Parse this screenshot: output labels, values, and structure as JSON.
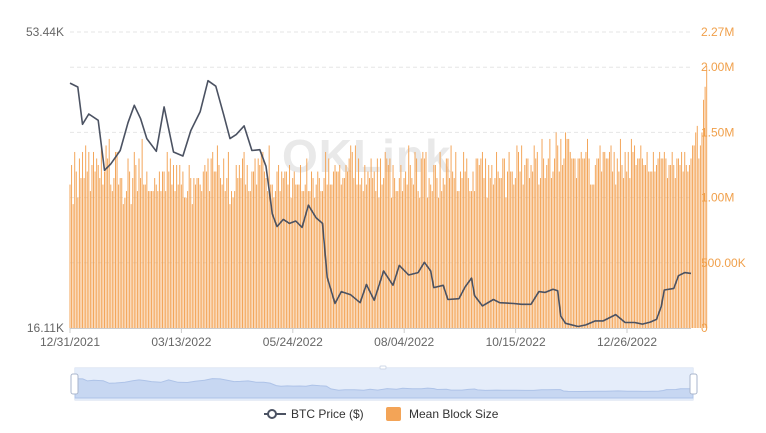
{
  "chart_data": {
    "type": "bar+line",
    "watermark": "OKLink",
    "colors": {
      "bar": "#f3a457",
      "line": "#4b5262",
      "left_axis_text": "#666666",
      "right_axis_text": "#f0a04b",
      "grid": "#e6e6e6"
    },
    "x_axis": {
      "start": "12/31/2021",
      "end": "01/31/2023",
      "tick_labels": [
        "12/31/2021",
        "03/13/2022",
        "05/24/2022",
        "08/04/2022",
        "10/15/2022",
        "12/26/2022"
      ]
    },
    "left_axis": {
      "series": "BTC Price ($)",
      "top_label": "53.44K",
      "bottom_label": "16.11K",
      "range": [
        16110,
        53440
      ]
    },
    "right_axis": {
      "series": "Mean Block Size",
      "tick_labels": [
        "0",
        "500.00K",
        "1.00M",
        "1.50M",
        "2.00M",
        "2.27M"
      ],
      "range": [
        0,
        2270000
      ]
    },
    "series": [
      {
        "name": "BTC Price ($)",
        "axis": "left",
        "kind": "line",
        "points": [
          [
            "12/31/2021",
            47000
          ],
          [
            "01/05/2022",
            46500
          ],
          [
            "01/08/2022",
            41800
          ],
          [
            "01/12/2022",
            43100
          ],
          [
            "01/18/2022",
            42300
          ],
          [
            "01/22/2022",
            36000
          ],
          [
            "01/26/2022",
            36800
          ],
          [
            "02/01/2022",
            38500
          ],
          [
            "02/06/2022",
            42000
          ],
          [
            "02/10/2022",
            44200
          ],
          [
            "02/14/2022",
            42500
          ],
          [
            "02/18/2022",
            40000
          ],
          [
            "02/24/2022",
            38400
          ],
          [
            "03/01/2022",
            44000
          ],
          [
            "03/07/2022",
            38300
          ],
          [
            "03/13/2022",
            37800
          ],
          [
            "03/18/2022",
            41000
          ],
          [
            "03/24/2022",
            43400
          ],
          [
            "03/29/2022",
            47300
          ],
          [
            "04/03/2022",
            46600
          ],
          [
            "04/08/2022",
            43000
          ],
          [
            "04/12/2022",
            40000
          ],
          [
            "04/16/2022",
            40500
          ],
          [
            "04/21/2022",
            41600
          ],
          [
            "04/26/2022",
            38500
          ],
          [
            "05/01/2022",
            38600
          ],
          [
            "05/05/2022",
            36500
          ],
          [
            "05/09/2022",
            30500
          ],
          [
            "05/12/2022",
            28900
          ],
          [
            "05/16/2022",
            29800
          ],
          [
            "05/20/2022",
            29300
          ],
          [
            "05/24/2022",
            29600
          ],
          [
            "05/28/2022",
            28800
          ],
          [
            "06/01/2022",
            31600
          ],
          [
            "06/06/2022",
            30000
          ],
          [
            "06/10/2022",
            29300
          ],
          [
            "06/13/2022",
            22500
          ],
          [
            "06/18/2022",
            19200
          ],
          [
            "06/22/2022",
            20700
          ],
          [
            "06/28/2022",
            20300
          ],
          [
            "07/04/2022",
            19300
          ],
          [
            "07/08/2022",
            21600
          ],
          [
            "07/13/2022",
            19600
          ],
          [
            "07/19/2022",
            23300
          ],
          [
            "07/25/2022",
            21500
          ],
          [
            "07/29/2022",
            24000
          ],
          [
            "08/04/2022",
            22800
          ],
          [
            "08/10/2022",
            23100
          ],
          [
            "08/14/2022",
            24400
          ],
          [
            "08/18/2022",
            23300
          ],
          [
            "08/20/2022",
            21200
          ],
          [
            "08/26/2022",
            21500
          ],
          [
            "08/29/2022",
            19700
          ],
          [
            "09/05/2022",
            19800
          ],
          [
            "09/09/2022",
            21300
          ],
          [
            "09/13/2022",
            22400
          ],
          [
            "09/15/2022",
            20200
          ],
          [
            "09/20/2022",
            18900
          ],
          [
            "09/27/2022",
            19700
          ],
          [
            "10/01/2022",
            19300
          ],
          [
            "10/10/2022",
            19200
          ],
          [
            "10/15/2022",
            19100
          ],
          [
            "10/21/2022",
            19100
          ],
          [
            "10/26/2022",
            20700
          ],
          [
            "10/30/2022",
            20600
          ],
          [
            "11/04/2022",
            21000
          ],
          [
            "11/07/2022",
            20800
          ],
          [
            "11/09/2022",
            17600
          ],
          [
            "11/12/2022",
            16700
          ],
          [
            "11/20/2022",
            16300
          ],
          [
            "11/25/2022",
            16500
          ],
          [
            "12/01/2022",
            17000
          ],
          [
            "12/06/2022",
            17000
          ],
          [
            "12/14/2022",
            17800
          ],
          [
            "12/20/2022",
            16800
          ],
          [
            "12/26/2022",
            16800
          ],
          [
            "12/31/2022",
            16600
          ],
          [
            "01/05/2023",
            16850
          ],
          [
            "01/09/2023",
            17200
          ],
          [
            "01/12/2023",
            18800
          ],
          [
            "01/14/2023",
            20900
          ],
          [
            "01/20/2023",
            21100
          ],
          [
            "01/23/2023",
            22700
          ],
          [
            "01/27/2023",
            23100
          ],
          [
            "01/31/2023",
            23000
          ]
        ]
      },
      {
        "name": "Mean Block Size",
        "axis": "right",
        "kind": "bar",
        "daily_values_start": "12/31/2021",
        "values": [
          1100000,
          1250000,
          950000,
          1350000,
          1200000,
          1000000,
          1300000,
          1150000,
          1350000,
          1150000,
          1400000,
          1200000,
          1350000,
          1050000,
          1250000,
          1350000,
          1200000,
          1300000,
          1250000,
          1150000,
          1400000,
          1100000,
          1200000,
          1400000,
          1300000,
          1450000,
          1100000,
          1050000,
          1150000,
          1350000,
          1350000,
          1100000,
          1150000,
          1150000,
          950000,
          1000000,
          1050000,
          1300000,
          1200000,
          950000,
          1150000,
          1350000,
          1250000,
          1050000,
          1300000,
          1150000,
          1450000,
          1100000,
          1100000,
          1200000,
          1050000,
          1050000,
          1050000,
          1050000,
          1150000,
          1100000,
          1050000,
          1200000,
          1050000,
          1200000,
          1200000,
          1050000,
          1350000,
          1200000,
          1300000,
          1100000,
          1250000,
          1050000,
          1250000,
          1100000,
          1250000,
          1100000,
          1200000,
          1000000,
          1000000,
          1050000,
          1250000,
          1150000,
          950000,
          1150000,
          1100000,
          1150000,
          1150000,
          1100000,
          1050000,
          1200000,
          1250000,
          1200000,
          1300000,
          1050000,
          1300000,
          1350000,
          1200000,
          1200000,
          1400000,
          1250000,
          1150000,
          1100000,
          1300000,
          1050000,
          1150000,
          1350000,
          950000,
          1050000,
          1000000,
          1050000,
          1250000,
          1150000,
          1250000,
          1150000,
          1300000,
          1350000,
          1100000,
          1250000,
          1050000,
          1050000,
          1200000,
          1200000,
          1300000,
          1100000,
          1300000,
          1250000,
          1350000,
          1350000,
          1200000,
          1150000,
          1050000,
          1400000,
          1100000,
          1100000,
          1000000,
          1050000,
          1200000,
          1250000,
          1050000,
          1200000,
          1150000,
          1200000,
          1200000,
          1100000,
          1250000,
          1000000,
          1150000,
          1200000,
          1100000,
          1100000,
          1100000,
          1250000,
          1050000,
          1050000,
          1100000,
          1300000,
          1050000,
          1050000,
          1200000,
          1150000,
          1000000,
          1100000,
          1200000,
          1150000,
          1050000,
          1050000,
          1150000,
          1350000,
          1100000,
          1300000,
          1100000,
          1100000,
          1200000,
          1250000,
          1200000,
          1200000,
          1250000,
          1100000,
          1150000,
          1150000,
          1250000,
          1200000,
          1300000,
          1400000,
          1350000,
          1150000,
          1400000,
          1100000,
          1300000,
          1100000,
          1150000,
          1050000,
          1250000,
          1100000,
          1200000,
          1150000,
          1300000,
          1150000,
          1200000,
          1050000,
          1300000,
          1000000,
          1300000,
          1100000,
          1150000,
          1350000,
          1300000,
          1250000,
          1300000,
          1000000,
          1250000,
          1150000,
          1050000,
          1050000,
          1150000,
          1250000,
          1050000,
          1150000,
          1200000,
          1100000,
          1400000,
          1250000,
          1150000,
          1100000,
          1350000,
          1300000,
          1050000,
          1000000,
          1300000,
          1350000,
          1300000,
          1350000,
          1000000,
          1150000,
          1100000,
          1050000,
          1250000,
          1250000,
          1150000,
          1000000,
          1350000,
          1050000,
          1150000,
          1100000,
          1300000,
          1300000,
          1150000,
          1400000,
          1200000,
          1150000,
          1350000,
          1050000,
          1050000,
          1200000,
          1150000,
          1350000,
          1200000,
          1300000,
          1150000,
          1050000,
          1050000,
          1200000,
          1050000,
          1300000,
          1300000,
          1250000,
          1300000,
          1350000,
          1150000,
          1300000,
          1000000,
          1250000,
          1150000,
          1250000,
          1100000,
          1150000,
          1350000,
          1200000,
          1150000,
          1150000,
          1300000,
          1300000,
          1000000,
          1200000,
          1350000,
          1200000,
          1200000,
          1100000,
          1150000,
          1400000,
          1350000,
          1200000,
          1400000,
          1100000,
          1250000,
          1300000,
          1300000,
          1150000,
          1250000,
          1200000,
          1400000,
          1300000,
          1350000,
          1100000,
          1150000,
          1450000,
          1300000,
          1150000,
          1250000,
          1300000,
          1450000,
          1150000,
          1200000,
          1300000,
          1500000,
          1400000,
          1200000,
          1450000,
          1250000,
          1300000,
          1500000,
          1450000,
          1450000,
          1350000,
          1300000,
          1300000,
          1300000,
          1150000,
          1300000,
          1300000,
          1350000,
          1300000,
          1300000,
          1350000,
          1450000,
          1300000,
          1100000,
          1100000,
          1100000,
          1250000,
          1300000,
          1300000,
          1400000,
          1200000,
          1350000,
          1350000,
          1300000,
          1300000,
          1350000,
          1400000,
          1200000,
          1350000,
          1100000,
          1300000,
          1200000,
          1450000,
          1250000,
          1150000,
          1350000,
          1200000,
          1350000,
          1150000,
          1450000,
          1350000,
          1400000,
          1250000,
          1300000,
          1300000,
          1400000,
          1300000,
          1250000,
          1250000,
          1350000,
          1200000,
          1200000,
          1200000,
          1350000,
          1200000,
          1250000,
          1300000,
          1350000,
          1300000,
          1300000,
          1350000,
          1300000,
          1150000,
          1250000,
          1250000,
          1350000,
          1250000,
          1150000,
          1300000,
          1300000,
          1250000,
          1350000,
          1200000,
          1350000,
          1250000,
          1200000,
          1250000,
          1300000,
          1400000,
          1400000,
          1500000,
          1550000,
          1300000,
          1400000,
          1500000,
          1750000,
          1850000,
          2010000
        ]
      }
    ],
    "legend": {
      "position": "bottom-center",
      "items": [
        {
          "label": "BTC Price ($)",
          "marker": "line-circle"
        },
        {
          "label": "Mean Block Size",
          "marker": "square"
        }
      ]
    }
  }
}
